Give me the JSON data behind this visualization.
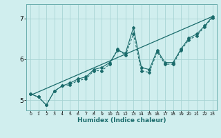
{
  "title": "",
  "xlabel": "Humidex (Indice chaleur)",
  "ylabel": "",
  "bg_color": "#d0eeee",
  "plot_bg_color": "#d0eeee",
  "grid_color": "#a8d4d4",
  "line_color": "#1a6b6b",
  "spine_color": "#6aadad",
  "xlim": [
    -0.5,
    23.5
  ],
  "ylim": [
    4.75,
    7.35
  ],
  "yticks": [
    5,
    6,
    7
  ],
  "xticks": [
    0,
    1,
    2,
    3,
    4,
    5,
    6,
    7,
    8,
    9,
    10,
    11,
    12,
    13,
    14,
    15,
    16,
    17,
    18,
    19,
    20,
    21,
    22,
    23
  ],
  "series1_x": [
    0,
    1,
    2,
    3,
    4,
    5,
    6,
    7,
    8,
    9,
    10,
    11,
    12,
    13,
    14,
    15,
    16,
    17,
    18,
    19,
    20,
    21,
    22,
    23
  ],
  "series1_y": [
    5.15,
    5.08,
    4.88,
    5.22,
    5.35,
    5.42,
    5.52,
    5.57,
    5.75,
    5.8,
    5.92,
    6.22,
    6.15,
    6.78,
    5.8,
    5.75,
    6.22,
    5.92,
    5.92,
    6.25,
    6.52,
    6.62,
    6.82,
    7.05
  ],
  "series2_x": [
    0,
    1,
    2,
    3,
    4,
    5,
    6,
    7,
    8,
    9,
    10,
    11,
    12,
    13,
    14,
    15,
    16,
    17,
    18,
    19,
    20,
    21,
    22,
    23
  ],
  "series2_y": [
    5.15,
    5.08,
    4.88,
    5.22,
    5.35,
    5.38,
    5.48,
    5.52,
    5.72,
    5.72,
    5.88,
    6.25,
    6.1,
    6.62,
    5.72,
    5.68,
    6.18,
    5.88,
    5.88,
    6.22,
    6.48,
    6.58,
    6.8,
    7.02
  ],
  "trend_x": [
    0,
    23
  ],
  "trend_y": [
    5.12,
    7.05
  ]
}
